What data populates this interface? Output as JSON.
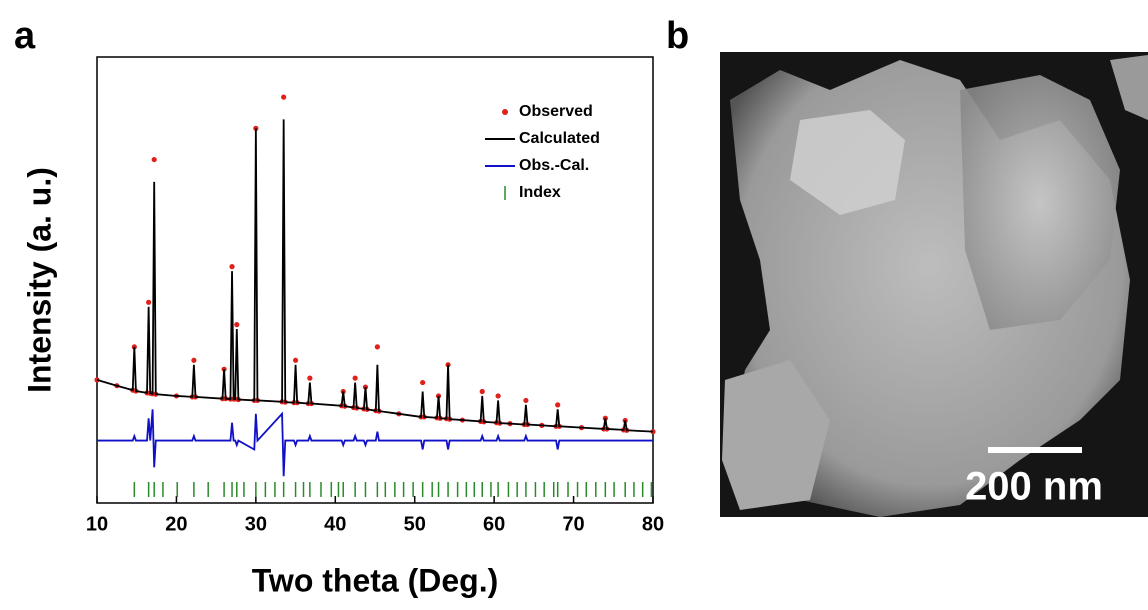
{
  "panel_labels": [
    "a",
    "b"
  ],
  "image": {
    "scale_bar": "200 nm"
  },
  "chart_data": {
    "type": "line",
    "xlabel": "Two theta (Deg.)",
    "ylabel": "Intensity (a. u.)",
    "xlim": [
      10,
      80
    ],
    "ylim": [
      0,
      100
    ],
    "xticks": [
      10,
      20,
      30,
      40,
      50,
      60,
      70,
      80
    ],
    "legend": "upper right",
    "x": [
      10,
      12.5,
      14.5,
      14.7,
      14.9,
      16.3,
      16.5,
      16.7,
      17.0,
      17.2,
      17.4,
      20,
      22.0,
      22.2,
      22.4,
      25.8,
      26.0,
      26.2,
      26.8,
      27.0,
      27.2,
      27.4,
      27.6,
      27.8,
      29.8,
      30.0,
      30.2,
      33.3,
      33.5,
      33.7,
      34.8,
      35.0,
      35.2,
      36.6,
      36.8,
      37.0,
      40.8,
      41.0,
      41.2,
      42.3,
      42.5,
      42.7,
      43.6,
      43.8,
      44.0,
      45.1,
      45.3,
      45.5,
      48,
      50.8,
      51.0,
      51.2,
      52.8,
      53.0,
      53.2,
      54.0,
      54.2,
      54.4,
      56,
      58.3,
      58.5,
      58.7,
      60.3,
      60.5,
      60.7,
      62,
      63.8,
      64.0,
      64.2,
      66,
      67.8,
      68.0,
      68.2,
      71,
      73.8,
      74.0,
      74.2,
      76.3,
      76.5,
      76.7,
      80
    ],
    "series": [
      {
        "name": "Observed",
        "color": "#e0201b",
        "style": "marker",
        "values": [
          27.6,
          26.3,
          25.3,
          35,
          25.1,
          24.7,
          45,
          24.6,
          24.5,
          77,
          24.4,
          24,
          23.8,
          32,
          23.8,
          23.4,
          30,
          23.4,
          23.3,
          53,
          23.3,
          23.3,
          40,
          23.2,
          23,
          84,
          23,
          22.7,
          91,
          22.6,
          22.5,
          32,
          22.5,
          22.3,
          28,
          22.3,
          21.8,
          25,
          21.7,
          21.4,
          28,
          21.3,
          21.1,
          26,
          21,
          20.7,
          35,
          20.6,
          20,
          19.3,
          27,
          19.3,
          19.1,
          24,
          19,
          18.9,
          31,
          18.8,
          18.6,
          18.3,
          25,
          18.2,
          18,
          24,
          17.9,
          17.8,
          17.6,
          23,
          17.6,
          17.4,
          17.2,
          22,
          17.2,
          16.9,
          16.6,
          19,
          16.6,
          16.4,
          18.5,
          16.3,
          16
        ]
      },
      {
        "name": "Calculated",
        "color": "#000000",
        "style": "line",
        "values": [
          27.6,
          26.3,
          25.3,
          35,
          25.1,
          24.7,
          44,
          24.6,
          24.5,
          72,
          24.4,
          24,
          23.8,
          31,
          23.8,
          23.4,
          30,
          23.4,
          23.3,
          52,
          23.3,
          23.3,
          39,
          23.2,
          23,
          84,
          23,
          22.7,
          86,
          22.6,
          22.5,
          31,
          22.5,
          22.3,
          27,
          22.3,
          21.8,
          25,
          21.7,
          21.4,
          27,
          21.3,
          21.1,
          26,
          21,
          20.7,
          31,
          20.6,
          20,
          19.3,
          25,
          19.3,
          19.1,
          24,
          19,
          18.9,
          31,
          18.8,
          18.6,
          18.3,
          24,
          18.2,
          18,
          23,
          17.9,
          17.8,
          17.6,
          22,
          17.6,
          17.4,
          17.2,
          21,
          17.2,
          16.9,
          16.6,
          19,
          16.6,
          16.4,
          18.5,
          16.3,
          16
        ]
      },
      {
        "name": "Obs.-Cal.",
        "color": "#1010c8",
        "style": "line",
        "values": [
          14,
          14,
          14,
          15,
          14,
          14,
          19,
          14,
          21,
          8,
          14,
          14,
          14,
          15,
          14,
          14,
          14,
          14,
          14,
          18,
          14,
          14,
          13,
          14,
          12,
          20,
          14,
          20,
          6,
          14,
          14,
          13,
          14,
          14,
          15,
          14,
          14,
          13,
          14,
          14,
          15,
          14,
          14,
          13,
          14,
          14,
          16,
          14,
          14,
          14,
          12,
          14,
          14,
          14,
          14,
          14,
          12,
          14,
          14,
          14,
          15,
          14,
          14,
          15,
          14,
          14,
          14,
          15,
          14,
          14,
          14,
          12,
          14,
          14,
          14,
          14,
          14,
          14,
          14,
          14,
          14
        ]
      },
      {
        "name": "Index",
        "color": "#2a8a2a",
        "style": "tick",
        "x": [
          14.7,
          16.5,
          17.2,
          18.3,
          20.1,
          22.2,
          24.0,
          26.0,
          27.0,
          27.6,
          28.5,
          30.0,
          31.2,
          32.4,
          33.5,
          35.0,
          36.0,
          36.8,
          38.2,
          39.5,
          40.4,
          41.0,
          42.5,
          43.8,
          45.3,
          46.3,
          47.5,
          48.6,
          49.8,
          51.0,
          52.2,
          53.0,
          54.2,
          55.4,
          56.5,
          57.5,
          58.5,
          59.6,
          60.5,
          61.8,
          62.9,
          64.0,
          65.2,
          66.3,
          67.5,
          68.0,
          69.3,
          70.5,
          71.6,
          72.8,
          74.0,
          75.1,
          76.5,
          77.6,
          78.7,
          79.8
        ]
      }
    ]
  }
}
